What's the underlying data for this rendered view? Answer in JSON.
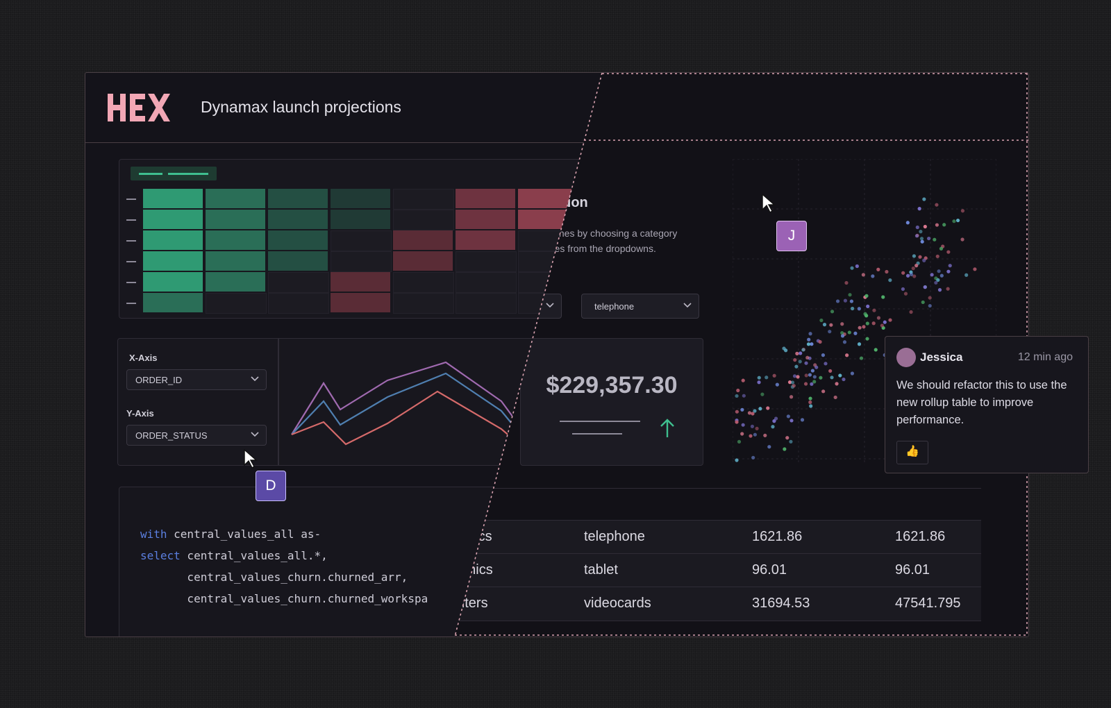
{
  "header": {
    "title": "Dynamax launch projections",
    "logo_text": "HEX"
  },
  "colors": {
    "accent_green": "#3fbf8f",
    "accent_red": "#b5505e",
    "frame_border": "#4a3f45"
  },
  "chart_config": {
    "x_axis_label": "X-Axis",
    "x_axis_value": "ORDER_ID",
    "y_axis_label": "Y-Axis",
    "y_axis_value": "ORDER_STATUS"
  },
  "cursors": {
    "d_label": "D",
    "j_label": "J"
  },
  "code": {
    "line1_kw": "with",
    "line1_rest": " central_values_all as-",
    "line2_kw": "select",
    "line2_rest": " central_values_all.*,",
    "line3": "       central_values_churn.churned_arr,",
    "line4": "       central_values_churn.churned_workspa"
  },
  "section": {
    "title_fragment": "ation",
    "desc_line1": "e lines by choosing a category",
    "desc_line2": "ories from the dropdowns."
  },
  "dropdowns": {
    "category_value": "telephone"
  },
  "kpi": {
    "value": "$229,357.30",
    "trend_icon": "arrow-up-icon"
  },
  "comment": {
    "author": "Jessica",
    "time": "12 min ago",
    "text": "We should refactor this to use the new rollup table to improve performance.",
    "reaction": "👍"
  },
  "table": {
    "rows": [
      {
        "category": "nics",
        "product": "telephone",
        "value1": "1621.86",
        "value2": "1621.86"
      },
      {
        "category": "onics",
        "product": "tablet",
        "value1": "96.01",
        "value2": "96.01"
      },
      {
        "category": "puters",
        "product": "videocards",
        "value1": "31694.53",
        "value2": "47541.795"
      }
    ]
  }
}
